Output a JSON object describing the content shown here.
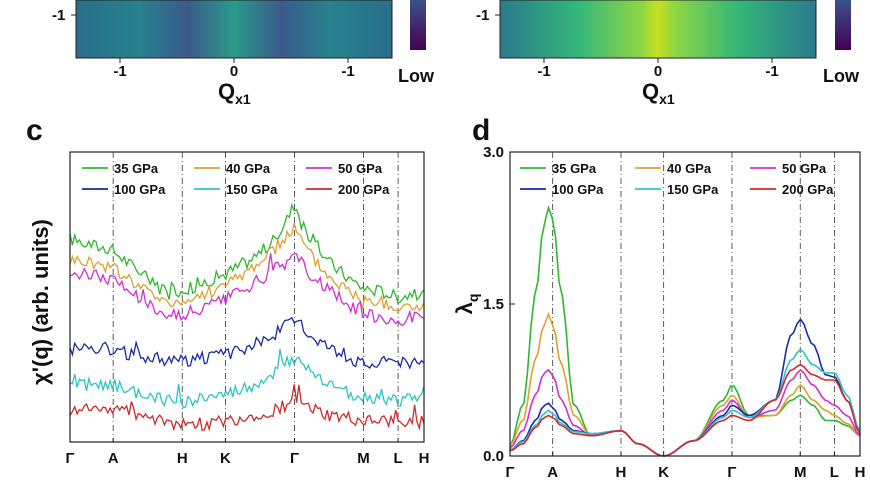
{
  "top": {
    "left": {
      "xticks": [
        "-1",
        "0",
        "-1"
      ],
      "ytick": "-1",
      "xlabel_main": "Q",
      "xlabel_sub": "x1",
      "cbar_low": "Low"
    },
    "right": {
      "xticks": [
        "-1",
        "0",
        "-1"
      ],
      "ytick": "-1",
      "xlabel_main": "Q",
      "xlabel_sub": "x1",
      "cbar_low": "Low"
    }
  },
  "colors": {
    "35 GPa": "#2db82d",
    "40 GPa": "#e0a030",
    "50 GPa": "#d030d0",
    "100 GPa": "#1a2aa8",
    "150 GPa": "#2ec4c4",
    "200 GPa": "#d02a2a"
  },
  "chart_data": [
    {
      "panel": "c",
      "type": "line",
      "ylabel": "χ'(q) (arb. units)",
      "xticks": [
        "Γ",
        "A",
        "H",
        "K",
        "Γ",
        "M",
        "L",
        "H"
      ],
      "kpos": [
        0,
        1,
        2.6,
        3.6,
        5.2,
        6.8,
        7.6,
        8.2
      ],
      "ylim": [
        0,
        1
      ],
      "series": [
        {
          "name": "35 GPa",
          "x": [
            0,
            0.5,
            1,
            1.5,
            2,
            2.6,
            3.1,
            3.6,
            4.2,
            4.7,
            5.0,
            5.2,
            5.5,
            6.0,
            6.5,
            6.8,
            7.2,
            7.6,
            7.9,
            8.2
          ],
          "y": [
            0.7,
            0.68,
            0.66,
            0.6,
            0.54,
            0.52,
            0.55,
            0.58,
            0.63,
            0.69,
            0.76,
            0.82,
            0.72,
            0.62,
            0.56,
            0.53,
            0.52,
            0.5,
            0.51,
            0.51
          ]
        },
        {
          "name": "40 GPa",
          "x": [
            0,
            0.5,
            1,
            1.5,
            2,
            2.6,
            3.1,
            3.6,
            4.2,
            4.7,
            5.0,
            5.2,
            5.5,
            6.0,
            6.5,
            6.8,
            7.2,
            7.6,
            7.9,
            8.2
          ],
          "y": [
            0.63,
            0.62,
            0.6,
            0.55,
            0.5,
            0.48,
            0.51,
            0.54,
            0.6,
            0.66,
            0.71,
            0.74,
            0.66,
            0.57,
            0.52,
            0.49,
            0.48,
            0.46,
            0.47,
            0.47
          ]
        },
        {
          "name": "50 GPa",
          "x": [
            0,
            0.5,
            1,
            1.5,
            2,
            2.6,
            3.1,
            3.6,
            4.2,
            4.7,
            5.0,
            5.2,
            5.5,
            6.0,
            6.5,
            6.8,
            7.2,
            7.6,
            7.9,
            8.2
          ],
          "y": [
            0.58,
            0.58,
            0.56,
            0.51,
            0.46,
            0.43,
            0.46,
            0.49,
            0.54,
            0.59,
            0.62,
            0.65,
            0.59,
            0.52,
            0.47,
            0.44,
            0.43,
            0.42,
            0.43,
            0.43
          ]
        },
        {
          "name": "100 GPa",
          "x": [
            0,
            0.5,
            1,
            1.5,
            2,
            2.6,
            3.1,
            3.6,
            4.2,
            4.7,
            5.0,
            5.2,
            5.5,
            6.0,
            6.5,
            6.8,
            7.2,
            7.6,
            7.9,
            8.2
          ],
          "y": [
            0.32,
            0.33,
            0.32,
            0.3,
            0.29,
            0.28,
            0.29,
            0.3,
            0.33,
            0.37,
            0.4,
            0.42,
            0.38,
            0.33,
            0.29,
            0.27,
            0.27,
            0.27,
            0.27,
            0.27
          ]
        },
        {
          "name": "150 GPa",
          "x": [
            0,
            0.5,
            1,
            1.5,
            2,
            2.6,
            3.1,
            3.6,
            4.2,
            4.7,
            5.0,
            5.2,
            5.5,
            6.0,
            6.5,
            6.8,
            7.2,
            7.6,
            7.9,
            8.2
          ],
          "y": [
            0.19,
            0.2,
            0.2,
            0.17,
            0.15,
            0.14,
            0.15,
            0.16,
            0.19,
            0.23,
            0.27,
            0.29,
            0.25,
            0.2,
            0.17,
            0.15,
            0.15,
            0.14,
            0.15,
            0.15
          ]
        },
        {
          "name": "200 GPa",
          "x": [
            0,
            0.5,
            1,
            1.5,
            2,
            2.6,
            3.1,
            3.6,
            4.2,
            4.7,
            5.0,
            5.2,
            5.5,
            6.0,
            6.5,
            6.8,
            7.2,
            7.6,
            7.9,
            8.2
          ],
          "y": [
            0.11,
            0.12,
            0.12,
            0.1,
            0.08,
            0.06,
            0.06,
            0.07,
            0.09,
            0.11,
            0.13,
            0.14,
            0.12,
            0.09,
            0.08,
            0.07,
            0.07,
            0.07,
            0.07,
            0.07
          ]
        }
      ]
    },
    {
      "panel": "d",
      "type": "line",
      "ylabel": "λ",
      "ylabel_sub": "q",
      "yticks": [
        "0.0",
        "1.5",
        "3.0"
      ],
      "ylim": [
        0,
        3
      ],
      "xticks": [
        "Γ",
        "A",
        "H",
        "K",
        "Γ",
        "M",
        "L",
        "H"
      ],
      "kpos": [
        0,
        1,
        2.6,
        3.6,
        5.2,
        6.8,
        7.6,
        8.2
      ],
      "series": [
        {
          "name": "35 GPa",
          "x": [
            0,
            0.3,
            0.6,
            0.8,
            0.9,
            1.0,
            1.2,
            1.5,
            1.9,
            2.6,
            3.0,
            3.6,
            4.3,
            5.0,
            5.2,
            5.6,
            6.2,
            6.6,
            6.8,
            7.1,
            7.4,
            7.6,
            7.9,
            8.2
          ],
          "y": [
            0.1,
            0.5,
            1.6,
            2.3,
            2.45,
            2.35,
            1.6,
            0.5,
            0.2,
            0.25,
            0.12,
            0.0,
            0.15,
            0.55,
            0.7,
            0.4,
            0.4,
            0.55,
            0.6,
            0.5,
            0.35,
            0.35,
            0.3,
            0.2
          ]
        },
        {
          "name": "40 GPa",
          "x": [
            0,
            0.3,
            0.6,
            0.8,
            0.9,
            1.0,
            1.2,
            1.5,
            1.9,
            2.6,
            3.0,
            3.6,
            4.3,
            5.0,
            5.2,
            5.6,
            6.2,
            6.6,
            6.8,
            7.1,
            7.4,
            7.6,
            7.9,
            8.2
          ],
          "y": [
            0.1,
            0.35,
            0.95,
            1.3,
            1.4,
            1.3,
            0.9,
            0.4,
            0.2,
            0.25,
            0.12,
            0.0,
            0.15,
            0.5,
            0.6,
            0.38,
            0.4,
            0.6,
            0.7,
            0.55,
            0.45,
            0.4,
            0.32,
            0.2
          ]
        },
        {
          "name": "50 GPa",
          "x": [
            0,
            0.3,
            0.6,
            0.8,
            0.9,
            1.0,
            1.2,
            1.5,
            1.9,
            2.6,
            3.0,
            3.6,
            4.3,
            5.0,
            5.2,
            5.6,
            6.2,
            6.6,
            6.8,
            7.1,
            7.4,
            7.6,
            7.9,
            8.2
          ],
          "y": [
            0.08,
            0.25,
            0.6,
            0.82,
            0.85,
            0.8,
            0.55,
            0.3,
            0.2,
            0.25,
            0.12,
            0.0,
            0.15,
            0.45,
            0.55,
            0.38,
            0.45,
            0.75,
            0.85,
            0.7,
            0.55,
            0.5,
            0.4,
            0.2
          ]
        },
        {
          "name": "100 GPa",
          "x": [
            0,
            0.3,
            0.6,
            0.8,
            0.9,
            1.0,
            1.2,
            1.5,
            1.9,
            2.6,
            3.0,
            3.6,
            4.3,
            5.0,
            5.2,
            5.6,
            6.2,
            6.6,
            6.8,
            7.1,
            7.4,
            7.6,
            7.9,
            8.2
          ],
          "y": [
            0.06,
            0.15,
            0.35,
            0.5,
            0.52,
            0.48,
            0.35,
            0.25,
            0.22,
            0.25,
            0.12,
            0.0,
            0.15,
            0.4,
            0.5,
            0.4,
            0.55,
            1.2,
            1.35,
            1.1,
            0.8,
            0.78,
            0.55,
            0.25
          ]
        },
        {
          "name": "150 GPa",
          "x": [
            0,
            0.3,
            0.6,
            0.8,
            0.9,
            1.0,
            1.2,
            1.5,
            1.9,
            2.6,
            3.0,
            3.6,
            4.3,
            5.0,
            5.2,
            5.6,
            6.2,
            6.6,
            6.8,
            7.1,
            7.4,
            7.6,
            7.9,
            8.2
          ],
          "y": [
            0.06,
            0.14,
            0.3,
            0.42,
            0.45,
            0.42,
            0.32,
            0.24,
            0.22,
            0.25,
            0.12,
            0.0,
            0.15,
            0.38,
            0.45,
            0.38,
            0.55,
            0.95,
            1.05,
            0.9,
            0.82,
            0.82,
            0.6,
            0.25
          ]
        },
        {
          "name": "200 GPa",
          "x": [
            0,
            0.3,
            0.6,
            0.8,
            0.9,
            1.0,
            1.2,
            1.5,
            1.9,
            2.6,
            3.0,
            3.6,
            4.3,
            5.0,
            5.2,
            5.6,
            6.2,
            6.6,
            6.8,
            7.1,
            7.4,
            7.6,
            7.9,
            8.2
          ],
          "y": [
            0.05,
            0.12,
            0.28,
            0.38,
            0.4,
            0.38,
            0.3,
            0.22,
            0.2,
            0.25,
            0.12,
            0.0,
            0.15,
            0.35,
            0.4,
            0.35,
            0.55,
            0.85,
            0.9,
            0.8,
            0.75,
            0.75,
            0.55,
            0.22
          ]
        }
      ]
    }
  ]
}
